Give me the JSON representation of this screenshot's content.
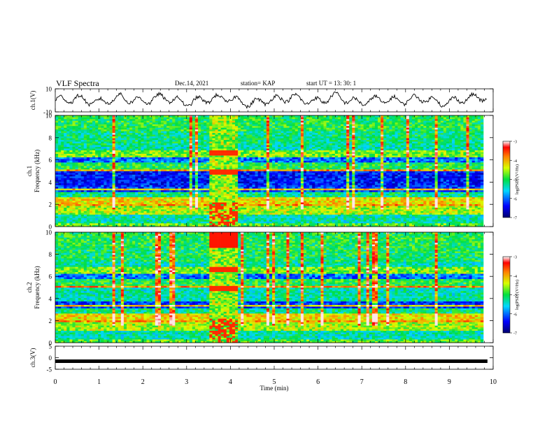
{
  "header": {
    "title": "VLF Spectra",
    "date": "Dec.14, 2021",
    "station": "station= KAP",
    "start": "start  UT =   13: 30: 1"
  },
  "colors": {
    "spectrum_low": "#0000c8",
    "spectrum_mid": "#00e040",
    "spectrum_high": "#ff2000",
    "trace": "#000000",
    "background": "#ffffff"
  },
  "chart_data": [
    {
      "type": "line",
      "panel": "ch1-waveform",
      "ylabel": "ch.1(V)",
      "ylim": [
        -10,
        10
      ],
      "yticks": [
        "10",
        "-10"
      ],
      "xlim": [
        0,
        10
      ],
      "series": [
        {
          "values": [
            0.0,
            1.5,
            -2.0,
            2.5,
            -1.0,
            3.0,
            -2.5,
            1.0,
            2.0,
            -3.0,
            0.5,
            2.5,
            -1.5,
            3.5,
            -2.0,
            1.0,
            -0.5,
            2.0,
            -2.5,
            1.5,
            3.0
          ]
        }
      ]
    },
    {
      "type": "heatmap",
      "panel": "ch1-spectrogram",
      "ylabel": "ch.1\nFrequency (kHz)",
      "ylim": [
        0,
        10
      ],
      "xlim": [
        0,
        10
      ],
      "yticks": [
        "0",
        "2",
        "4",
        "6",
        "8",
        "10"
      ],
      "colorbar": {
        "label": "log(PSD) (V²/Hz)",
        "range": [
          -7,
          -3
        ],
        "ticks": [
          "-3",
          "-4",
          "-5",
          "-6",
          "-7"
        ]
      },
      "burst_interval_min": [
        3.55,
        4.2
      ]
    },
    {
      "type": "heatmap",
      "panel": "ch2-spectrogram",
      "ylabel": "ch.2\nFrequency (kHz)",
      "ylim": [
        0,
        10
      ],
      "xlim": [
        0,
        10
      ],
      "yticks": [
        "0",
        "2",
        "4",
        "6",
        "8",
        "10"
      ],
      "colorbar": {
        "label": "log(PSD) (V²/Hz)",
        "range": [
          -7,
          -3
        ],
        "ticks": [
          "-3",
          "-4",
          "-5",
          "-6",
          "-7"
        ]
      },
      "burst_interval_min": [
        3.55,
        4.2
      ]
    },
    {
      "type": "line",
      "panel": "ch3-waveform",
      "ylabel": "ch.3(V)",
      "ylim": [
        -5,
        5
      ],
      "yticks": [
        "5",
        "0",
        "-5"
      ],
      "xlim": [
        0,
        10
      ],
      "series": [
        {
          "values": [
            -1.5,
            -1.5
          ]
        }
      ]
    }
  ],
  "x_axis": {
    "label": "Time  (min)",
    "ticks": [
      "0",
      "1",
      "2",
      "3",
      "4",
      "5",
      "6",
      "7",
      "8",
      "9",
      "10"
    ]
  }
}
